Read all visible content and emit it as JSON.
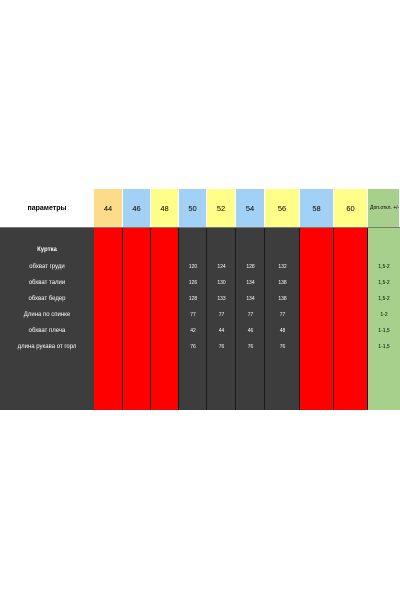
{
  "header": {
    "params_label": "параметры",
    "sizes": [
      {
        "label": "44",
        "color": "#fcdc8a",
        "body": "#ff0000"
      },
      {
        "label": "46",
        "color": "#a3d0f5",
        "body": "#ff0000"
      },
      {
        "label": "48",
        "color": "#fefe88",
        "body": "#ff0000"
      },
      {
        "label": "50",
        "color": "#a3d0f5",
        "body": "#3d3d3d"
      },
      {
        "label": "52",
        "color": "#fefe88",
        "body": "#3d3d3d"
      },
      {
        "label": "54",
        "color": "#a3d0f5",
        "body": "#3d3d3d"
      },
      {
        "label": "56",
        "color": "#fefe88",
        "body": "#3d3d3d"
      },
      {
        "label": "58",
        "color": "#a3d0f5",
        "body": "#ff0000"
      },
      {
        "label": "60",
        "color": "#fefe88",
        "body": "#ff0000"
      }
    ],
    "tolerance_label": "Доп.откл. +/-",
    "tolerance_color": "#a7d08c"
  },
  "section_title": "Куртка",
  "rows": [
    {
      "label": "обхват груди",
      "values": [
        "",
        "",
        "",
        "120",
        "124",
        "128",
        "132",
        "",
        ""
      ],
      "tolerance": "1,5-2"
    },
    {
      "label": "обхват талии",
      "values": [
        "",
        "",
        "",
        "126",
        "130",
        "134",
        "138",
        "",
        ""
      ],
      "tolerance": "1,5-2"
    },
    {
      "label": "обхват бедер",
      "values": [
        "",
        "",
        "",
        "128",
        "133",
        "134",
        "138",
        "",
        ""
      ],
      "tolerance": "1,5-2"
    },
    {
      "label": "Длина по спинке",
      "values": [
        "",
        "",
        "",
        "77",
        "77",
        "77",
        "77",
        "",
        ""
      ],
      "tolerance": "1-2"
    },
    {
      "label": "обхват плеча",
      "values": [
        "",
        "",
        "",
        "42",
        "44",
        "46",
        "48",
        "",
        ""
      ],
      "tolerance": "1-1,5"
    },
    {
      "label": "длина рукава от горл",
      "values": [
        "",
        "",
        "",
        "76",
        "76",
        "76",
        "76",
        "",
        ""
      ],
      "tolerance": "1-1,5"
    }
  ]
}
